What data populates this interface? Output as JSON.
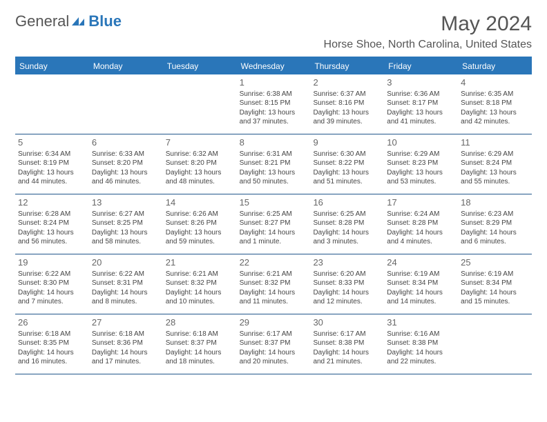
{
  "logo": {
    "general": "General",
    "blue": "Blue"
  },
  "title": "May 2024",
  "location": "Horse Shoe, North Carolina, United States",
  "colors": {
    "header_bg": "#2a76b9",
    "header_text": "#ffffff",
    "rule": "#20558a",
    "text": "#444444",
    "daynum": "#666666"
  },
  "days_of_week": [
    "Sunday",
    "Monday",
    "Tuesday",
    "Wednesday",
    "Thursday",
    "Friday",
    "Saturday"
  ],
  "weeks": [
    [
      {
        "n": "",
        "sr": "",
        "ss": "",
        "dl": ""
      },
      {
        "n": "",
        "sr": "",
        "ss": "",
        "dl": ""
      },
      {
        "n": "",
        "sr": "",
        "ss": "",
        "dl": ""
      },
      {
        "n": "1",
        "sr": "Sunrise: 6:38 AM",
        "ss": "Sunset: 8:15 PM",
        "dl": "Daylight: 13 hours and 37 minutes."
      },
      {
        "n": "2",
        "sr": "Sunrise: 6:37 AM",
        "ss": "Sunset: 8:16 PM",
        "dl": "Daylight: 13 hours and 39 minutes."
      },
      {
        "n": "3",
        "sr": "Sunrise: 6:36 AM",
        "ss": "Sunset: 8:17 PM",
        "dl": "Daylight: 13 hours and 41 minutes."
      },
      {
        "n": "4",
        "sr": "Sunrise: 6:35 AM",
        "ss": "Sunset: 8:18 PM",
        "dl": "Daylight: 13 hours and 42 minutes."
      }
    ],
    [
      {
        "n": "5",
        "sr": "Sunrise: 6:34 AM",
        "ss": "Sunset: 8:19 PM",
        "dl": "Daylight: 13 hours and 44 minutes."
      },
      {
        "n": "6",
        "sr": "Sunrise: 6:33 AM",
        "ss": "Sunset: 8:20 PM",
        "dl": "Daylight: 13 hours and 46 minutes."
      },
      {
        "n": "7",
        "sr": "Sunrise: 6:32 AM",
        "ss": "Sunset: 8:20 PM",
        "dl": "Daylight: 13 hours and 48 minutes."
      },
      {
        "n": "8",
        "sr": "Sunrise: 6:31 AM",
        "ss": "Sunset: 8:21 PM",
        "dl": "Daylight: 13 hours and 50 minutes."
      },
      {
        "n": "9",
        "sr": "Sunrise: 6:30 AM",
        "ss": "Sunset: 8:22 PM",
        "dl": "Daylight: 13 hours and 51 minutes."
      },
      {
        "n": "10",
        "sr": "Sunrise: 6:29 AM",
        "ss": "Sunset: 8:23 PM",
        "dl": "Daylight: 13 hours and 53 minutes."
      },
      {
        "n": "11",
        "sr": "Sunrise: 6:29 AM",
        "ss": "Sunset: 8:24 PM",
        "dl": "Daylight: 13 hours and 55 minutes."
      }
    ],
    [
      {
        "n": "12",
        "sr": "Sunrise: 6:28 AM",
        "ss": "Sunset: 8:24 PM",
        "dl": "Daylight: 13 hours and 56 minutes."
      },
      {
        "n": "13",
        "sr": "Sunrise: 6:27 AM",
        "ss": "Sunset: 8:25 PM",
        "dl": "Daylight: 13 hours and 58 minutes."
      },
      {
        "n": "14",
        "sr": "Sunrise: 6:26 AM",
        "ss": "Sunset: 8:26 PM",
        "dl": "Daylight: 13 hours and 59 minutes."
      },
      {
        "n": "15",
        "sr": "Sunrise: 6:25 AM",
        "ss": "Sunset: 8:27 PM",
        "dl": "Daylight: 14 hours and 1 minute."
      },
      {
        "n": "16",
        "sr": "Sunrise: 6:25 AM",
        "ss": "Sunset: 8:28 PM",
        "dl": "Daylight: 14 hours and 3 minutes."
      },
      {
        "n": "17",
        "sr": "Sunrise: 6:24 AM",
        "ss": "Sunset: 8:28 PM",
        "dl": "Daylight: 14 hours and 4 minutes."
      },
      {
        "n": "18",
        "sr": "Sunrise: 6:23 AM",
        "ss": "Sunset: 8:29 PM",
        "dl": "Daylight: 14 hours and 6 minutes."
      }
    ],
    [
      {
        "n": "19",
        "sr": "Sunrise: 6:22 AM",
        "ss": "Sunset: 8:30 PM",
        "dl": "Daylight: 14 hours and 7 minutes."
      },
      {
        "n": "20",
        "sr": "Sunrise: 6:22 AM",
        "ss": "Sunset: 8:31 PM",
        "dl": "Daylight: 14 hours and 8 minutes."
      },
      {
        "n": "21",
        "sr": "Sunrise: 6:21 AM",
        "ss": "Sunset: 8:32 PM",
        "dl": "Daylight: 14 hours and 10 minutes."
      },
      {
        "n": "22",
        "sr": "Sunrise: 6:21 AM",
        "ss": "Sunset: 8:32 PM",
        "dl": "Daylight: 14 hours and 11 minutes."
      },
      {
        "n": "23",
        "sr": "Sunrise: 6:20 AM",
        "ss": "Sunset: 8:33 PM",
        "dl": "Daylight: 14 hours and 12 minutes."
      },
      {
        "n": "24",
        "sr": "Sunrise: 6:19 AM",
        "ss": "Sunset: 8:34 PM",
        "dl": "Daylight: 14 hours and 14 minutes."
      },
      {
        "n": "25",
        "sr": "Sunrise: 6:19 AM",
        "ss": "Sunset: 8:34 PM",
        "dl": "Daylight: 14 hours and 15 minutes."
      }
    ],
    [
      {
        "n": "26",
        "sr": "Sunrise: 6:18 AM",
        "ss": "Sunset: 8:35 PM",
        "dl": "Daylight: 14 hours and 16 minutes."
      },
      {
        "n": "27",
        "sr": "Sunrise: 6:18 AM",
        "ss": "Sunset: 8:36 PM",
        "dl": "Daylight: 14 hours and 17 minutes."
      },
      {
        "n": "28",
        "sr": "Sunrise: 6:18 AM",
        "ss": "Sunset: 8:37 PM",
        "dl": "Daylight: 14 hours and 18 minutes."
      },
      {
        "n": "29",
        "sr": "Sunrise: 6:17 AM",
        "ss": "Sunset: 8:37 PM",
        "dl": "Daylight: 14 hours and 20 minutes."
      },
      {
        "n": "30",
        "sr": "Sunrise: 6:17 AM",
        "ss": "Sunset: 8:38 PM",
        "dl": "Daylight: 14 hours and 21 minutes."
      },
      {
        "n": "31",
        "sr": "Sunrise: 6:16 AM",
        "ss": "Sunset: 8:38 PM",
        "dl": "Daylight: 14 hours and 22 minutes."
      },
      {
        "n": "",
        "sr": "",
        "ss": "",
        "dl": ""
      }
    ]
  ]
}
